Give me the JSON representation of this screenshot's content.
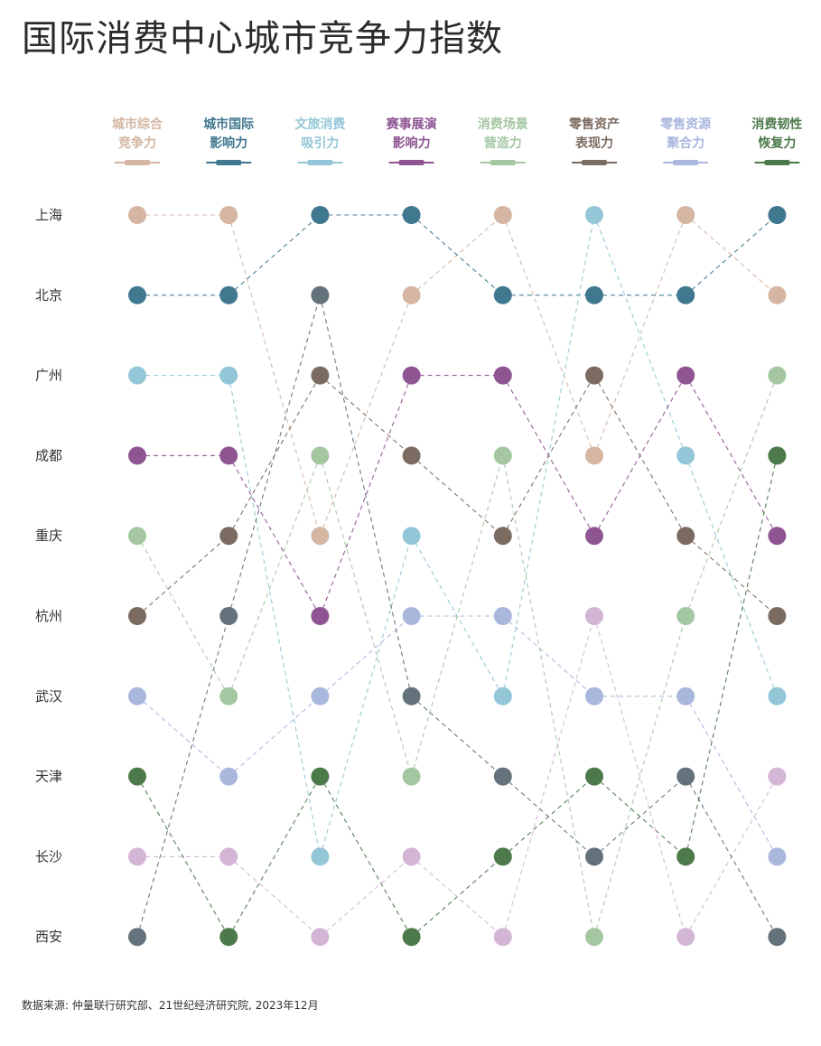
{
  "title": "国际消费中心城市竞争力指数",
  "source": "数据来源: 仲量联行研究部、21世纪经济研究院, 2023年12月",
  "chart_data": {
    "type": "bump",
    "cities": [
      "上海",
      "北京",
      "广州",
      "成都",
      "重庆",
      "杭州",
      "武汉",
      "天津",
      "长沙",
      "西安"
    ],
    "dimensions": [
      {
        "name": [
          "城市综合",
          "竞争力"
        ],
        "color": "#d4b6a2"
      },
      {
        "name": [
          "城市国际",
          "影响力"
        ],
        "color": "#40788f"
      },
      {
        "name": [
          "文旅消费",
          "吸引力"
        ],
        "color": "#93c6d6"
      },
      {
        "name": [
          "赛事展演",
          "影响力"
        ],
        "color": "#8e5592"
      },
      {
        "name": [
          "消费场景",
          "营造力"
        ],
        "color": "#a4c7a2"
      },
      {
        "name": [
          "零售资产",
          "表现力"
        ],
        "color": "#7c6b61"
      },
      {
        "name": [
          "零售资源",
          "聚合力"
        ],
        "color": "#aab7dd"
      },
      {
        "name": [
          "消费韧性",
          "恢复力"
        ],
        "color": "#4d7a4b"
      }
    ],
    "city_colors": {
      "上海": "#d4b6a2",
      "北京": "#40788f",
      "广州": "#93c6d6",
      "成都": "#8e5592",
      "杭州": "#7c6b61",
      "重庆": "#a4c7a2",
      "武汉": "#aab7dd",
      "天津": "#4d7a4b",
      "长沙": "#d3b5d6",
      "西安": "#64727b"
    },
    "ranks": [
      [
        "上海",
        "北京",
        "广州",
        "成都",
        "重庆",
        "杭州",
        "武汉",
        "天津",
        "长沙",
        "西安"
      ],
      [
        "上海",
        "北京",
        "广州",
        "成都",
        "杭州",
        "西安",
        "重庆",
        "武汉",
        "长沙",
        "天津"
      ],
      [
        "北京",
        "西安",
        "杭州",
        "重庆",
        "上海",
        "成都",
        "武汉",
        "天津",
        "广州",
        "长沙"
      ],
      [
        "北京",
        "上海",
        "成都",
        "杭州",
        "广州",
        "武汉",
        "西安",
        "重庆",
        "长沙",
        "天津"
      ],
      [
        "上海",
        "北京",
        "成都",
        "重庆",
        "杭州",
        "武汉",
        "广州",
        "西安",
        "天津",
        "长沙"
      ],
      [
        "广州",
        "北京",
        "杭州",
        "上海",
        "成都",
        "长沙",
        "武汉",
        "天津",
        "西安",
        "重庆"
      ],
      [
        "上海",
        "北京",
        "成都",
        "广州",
        "杭州",
        "重庆",
        "武汉",
        "西安",
        "天津",
        "长沙"
      ],
      [
        "北京",
        "上海",
        "重庆",
        "天津",
        "成都",
        "杭州",
        "广州",
        "长沙",
        "武汉",
        "西安"
      ]
    ]
  }
}
